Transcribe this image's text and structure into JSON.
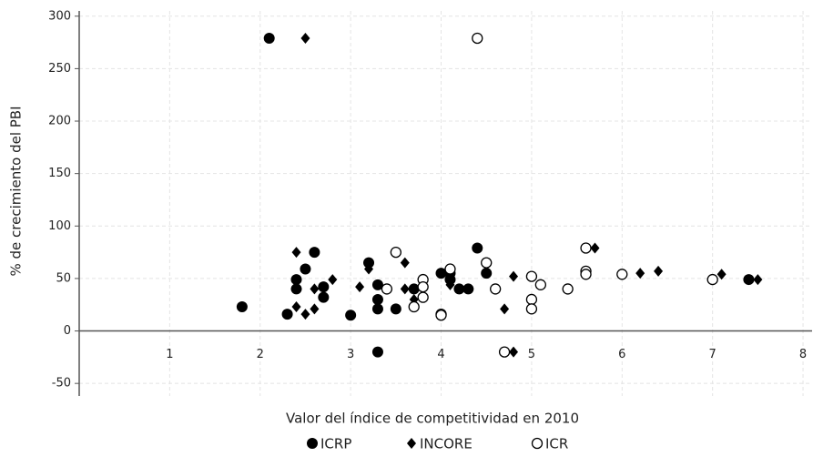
{
  "chart_data": {
    "type": "scatter",
    "x_label": "Valor del índice de competitividad  en 2010",
    "y_label": "% de crecimiento del PBI",
    "xlim": [
      0,
      8.1
    ],
    "ylim": [
      -62,
      305
    ],
    "xticks": [
      1,
      2,
      3,
      4,
      5,
      6,
      7,
      8
    ],
    "yticks": [
      -50,
      0,
      50,
      100,
      150,
      200,
      250,
      300
    ],
    "grid": true,
    "series": [
      {
        "name": "ICRP",
        "marker": "circle",
        "color": "#000000",
        "x": [
          1.8,
          2.1,
          2.3,
          2.4,
          2.4,
          2.5,
          2.6,
          2.7,
          2.7,
          3.0,
          3.2,
          3.3,
          3.3,
          3.3,
          3.3,
          3.5,
          3.7,
          4.0,
          4.1,
          4.1,
          4.2,
          4.3,
          4.4,
          4.5,
          7.4
        ],
        "values": [
          23,
          279,
          16,
          49,
          40,
          59,
          75,
          42,
          32,
          15,
          65,
          44,
          30,
          21,
          -20,
          21,
          40,
          55,
          55,
          49,
          40,
          40,
          79,
          55,
          49
        ]
      },
      {
        "name": "INCORE",
        "marker": "diamond",
        "color": "#000000",
        "x": [
          2.5,
          2.4,
          2.4,
          2.5,
          2.6,
          2.6,
          2.8,
          3.1,
          3.2,
          3.6,
          3.6,
          3.7,
          4.1,
          4.2,
          4.7,
          4.8,
          4.8,
          5.7,
          6.2,
          6.4,
          7.1,
          7.5
        ],
        "values": [
          279,
          75,
          23,
          16,
          40,
          21,
          49,
          42,
          59,
          65,
          40,
          30,
          44,
          40,
          21,
          52,
          -20,
          79,
          55,
          57,
          54,
          49
        ]
      },
      {
        "name": "ICR",
        "marker": "open-circle",
        "color": "#000000",
        "x": [
          4.4,
          3.5,
          3.4,
          3.7,
          3.8,
          3.8,
          3.8,
          4.0,
          4.0,
          4.1,
          4.5,
          4.6,
          4.7,
          5.0,
          5.0,
          5.0,
          5.1,
          5.4,
          5.6,
          5.6,
          5.6,
          6.0,
          7.0
        ],
        "values": [
          279,
          75,
          40,
          23,
          49,
          42,
          32,
          16,
          15,
          59,
          65,
          40,
          -20,
          52,
          30,
          21,
          44,
          40,
          79,
          57,
          54,
          54,
          49
        ]
      }
    ]
  }
}
